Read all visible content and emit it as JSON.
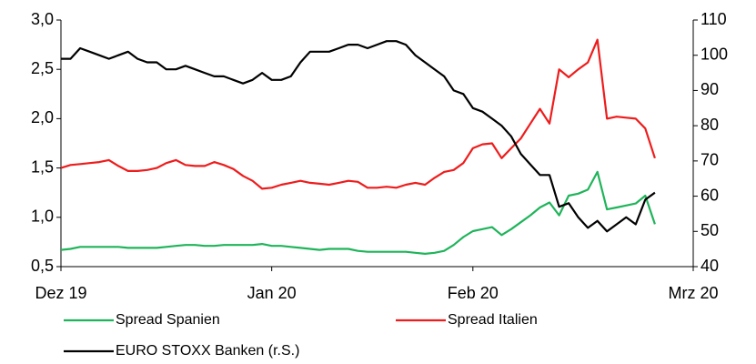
{
  "chart_data": {
    "type": "line",
    "categories": [
      "Dez 19",
      null,
      null,
      null,
      null,
      null,
      null,
      null,
      null,
      null,
      null,
      null,
      null,
      null,
      null,
      null,
      null,
      null,
      null,
      null,
      null,
      null,
      "Jan 20",
      null,
      null,
      null,
      null,
      null,
      null,
      null,
      null,
      null,
      null,
      null,
      null,
      null,
      null,
      null,
      null,
      null,
      null,
      null,
      null,
      "Feb 20",
      null,
      null,
      null,
      null,
      null,
      null,
      null,
      null,
      null,
      null,
      null,
      null,
      null,
      null,
      null,
      null,
      null,
      null,
      null,
      null,
      null,
      null,
      "Mrz 20"
    ],
    "ylim": [
      0.5,
      3.0
    ],
    "yticks": [
      {
        "value": 0.5,
        "label": "0,5"
      },
      {
        "value": 1.0,
        "label": "1,0"
      },
      {
        "value": 1.5,
        "label": "1,5"
      },
      {
        "value": 2.0,
        "label": "2,0"
      },
      {
        "value": 2.5,
        "label": "2,5"
      },
      {
        "value": 3.0,
        "label": "3,0"
      }
    ],
    "y2lim": [
      40,
      110
    ],
    "y2ticks": [
      40,
      50,
      60,
      70,
      80,
      90,
      100,
      110
    ],
    "series": [
      {
        "name": "Spread Spanien",
        "color": "#1fb45a",
        "values": [
          0.67,
          0.68,
          0.7,
          0.7,
          0.7,
          0.7,
          0.7,
          0.69,
          0.69,
          0.69,
          0.69,
          0.7,
          0.71,
          0.72,
          0.72,
          0.71,
          0.71,
          0.72,
          0.72,
          0.72,
          0.72,
          0.73,
          0.71,
          0.71,
          0.7,
          0.69,
          0.68,
          0.67,
          0.68,
          0.68,
          0.68,
          0.66,
          0.65,
          0.65,
          0.65,
          0.65,
          0.65,
          0.64,
          0.63,
          0.64,
          0.66,
          0.72,
          0.8,
          0.86,
          0.88,
          0.9,
          0.82,
          0.88,
          0.95,
          1.02,
          1.1,
          1.15,
          1.02,
          1.22,
          1.24,
          1.28,
          1.46,
          1.08,
          1.1,
          1.12,
          1.14,
          1.22,
          0.93,
          null,
          null,
          null,
          null
        ]
      },
      {
        "name": "Spread Italien",
        "color": "#ee1c1c",
        "values": [
          1.5,
          1.53,
          1.54,
          1.55,
          1.56,
          1.58,
          1.52,
          1.47,
          1.47,
          1.48,
          1.5,
          1.55,
          1.58,
          1.53,
          1.52,
          1.52,
          1.56,
          1.53,
          1.49,
          1.42,
          1.37,
          1.29,
          1.3,
          1.33,
          1.35,
          1.37,
          1.35,
          1.34,
          1.33,
          1.35,
          1.37,
          1.36,
          1.3,
          1.3,
          1.31,
          1.3,
          1.33,
          1.35,
          1.33,
          1.4,
          1.46,
          1.48,
          1.55,
          1.7,
          1.74,
          1.75,
          1.6,
          1.7,
          1.8,
          1.95,
          2.1,
          1.95,
          2.5,
          2.42,
          2.5,
          2.57,
          2.8,
          2.0,
          2.02,
          2.01,
          2.0,
          1.9,
          1.6,
          null,
          null,
          null,
          null
        ]
      },
      {
        "name": "EURO STOXX Banken (r.S.)",
        "color": "#000000",
        "axis": "y2",
        "values": [
          99,
          99,
          102,
          101,
          100,
          99,
          100,
          101,
          99,
          98,
          98,
          96,
          96,
          97,
          96,
          95,
          94,
          94,
          93,
          92,
          93,
          95,
          93,
          93,
          94,
          98,
          101,
          101,
          101,
          102,
          103,
          103,
          102,
          103,
          104,
          104,
          103,
          100,
          98,
          96,
          94,
          90,
          89,
          85,
          84,
          82,
          80,
          77,
          72,
          69,
          66,
          66,
          57,
          58,
          54,
          51,
          53,
          50,
          52,
          54,
          52,
          59,
          61,
          null,
          null,
          null,
          null
        ]
      }
    ]
  }
}
